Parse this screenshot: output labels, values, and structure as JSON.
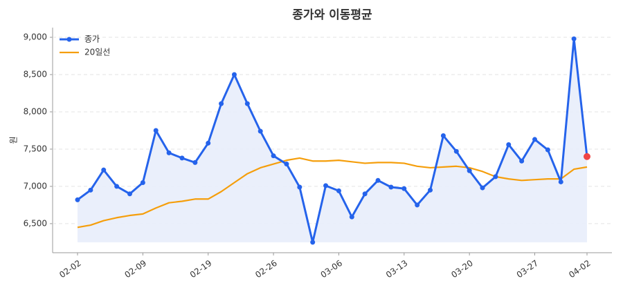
{
  "chart_data": {
    "type": "line",
    "title": "종가와 이동평균",
    "y_label": "원",
    "categories": [
      "02-02",
      null,
      null,
      null,
      null,
      "02-09",
      null,
      null,
      null,
      null,
      "02-19",
      null,
      null,
      null,
      null,
      "02-26",
      null,
      null,
      null,
      null,
      "03-06",
      null,
      null,
      null,
      null,
      "03-13",
      null,
      null,
      null,
      null,
      "03-20",
      null,
      null,
      null,
      null,
      "03-27",
      null,
      null,
      null,
      "04-02"
    ],
    "series": [
      {
        "name": "종가",
        "color": "#2563eb",
        "markers": true,
        "fill": "#e8edfb",
        "highlight_last_color": "#ef4444",
        "values": [
          6820,
          6950,
          7220,
          7000,
          6900,
          7050,
          7750,
          7450,
          7380,
          7320,
          7580,
          8110,
          8500,
          8110,
          7740,
          7410,
          7300,
          6990,
          6250,
          7010,
          6940,
          6590,
          6900,
          7080,
          6990,
          6970,
          6750,
          6950,
          7680,
          7470,
          7210,
          6980,
          7130,
          7560,
          7340,
          7630,
          7490,
          7060,
          8980,
          7400
        ]
      },
      {
        "name": "20일선",
        "color": "#f59e0b",
        "markers": false,
        "values": [
          6450,
          6480,
          6540,
          6580,
          6610,
          6630,
          6710,
          6780,
          6800,
          6830,
          6830,
          6930,
          7050,
          7170,
          7250,
          7300,
          7350,
          7380,
          7340,
          7340,
          7350,
          7330,
          7310,
          7320,
          7320,
          7310,
          7270,
          7250,
          7260,
          7270,
          7250,
          7200,
          7130,
          7100,
          7080,
          7090,
          7100,
          7100,
          7230,
          7260
        ]
      }
    ],
    "ylim": [
      6110,
      9130
    ],
    "yticks": [
      {
        "value": 6500,
        "label": "6,500"
      },
      {
        "value": 7000,
        "label": "7,000"
      },
      {
        "value": 7500,
        "label": "7,500"
      },
      {
        "value": 8000,
        "label": "8,000"
      },
      {
        "value": 8500,
        "label": "8,500"
      },
      {
        "value": 9000,
        "label": "9,000"
      }
    ],
    "grid": true,
    "legend": "upper-left"
  }
}
